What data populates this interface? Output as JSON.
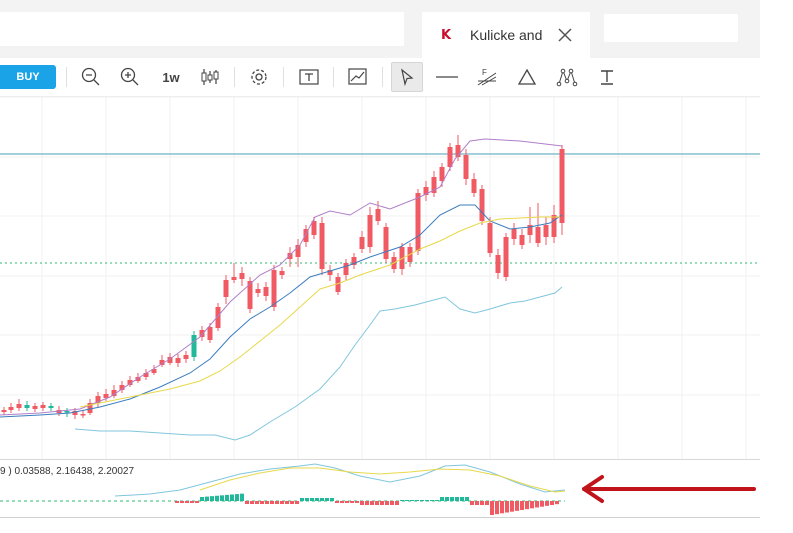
{
  "tabs": {
    "active_title": "Kulicke and",
    "active_logo": "K"
  },
  "toolbar": {
    "buy_label": "BUY",
    "interval_label": "1w",
    "icons": [
      "zoom-out-icon",
      "zoom-in-icon",
      "interval",
      "candlestick-icon",
      "gear-icon",
      "template-icon",
      "indicator-chart-icon",
      "cursor-icon",
      "horizontal-line-icon",
      "fibonacci-icon",
      "triangle-icon",
      "pattern-icon",
      "text-icon"
    ]
  },
  "oscillator": {
    "label": "9 ) 0.03588, 2.16438, 2.20027"
  },
  "colors": {
    "up": "#22b89a",
    "down": "#ef5a63",
    "bb_upper": "#b07fc8",
    "bb_lower": "#80c6dd",
    "ma_blue": "#3a7dbf",
    "ma_yellow": "#e8d84a",
    "hline": "#4aa0b8",
    "dotted": "#2dbd73",
    "arrow": "#c0141a",
    "buy": "#1aa3e6"
  },
  "annotation": {
    "arrow": "red-arrow-pointing-left"
  }
}
